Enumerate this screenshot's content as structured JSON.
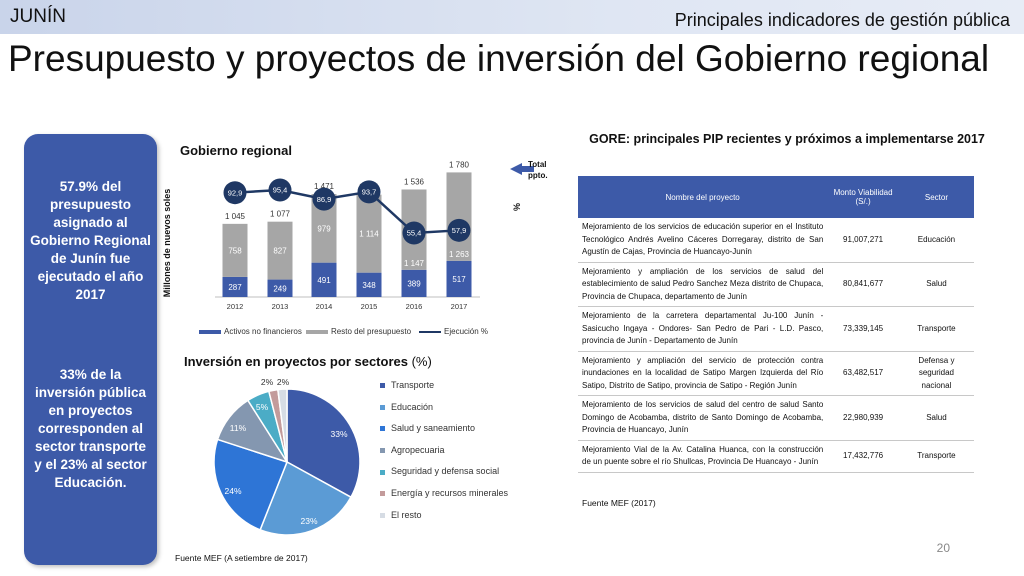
{
  "header": {
    "region": "JUNÍN",
    "subtitle": "Principales indicadores de gestión pública",
    "title": "Presupuesto y proyectos de inversión del Gobierno regional"
  },
  "side_panel": {
    "text1": "57.9% del presupuesto asignado al Gobierno Regional de Junín fue ejecutado el año 2017",
    "text2": "33% de la inversión pública en proyectos corresponden  al sector transporte y el 23% al sector Educación."
  },
  "colors": {
    "dark_blue": "#3d5aa8",
    "navy": "#1f3864",
    "gray_bar": "#a6a6a6",
    "light_blue": "#5b9bd5",
    "teal": "#4bacc6"
  },
  "bar_chart": {
    "total_label": "Total ppto.",
    "pct_label": "%"
  },
  "pie_chart": {
    "title_bold": "Inversión en proyectos por sectores",
    "title_unit": "(%)"
  },
  "chart_data": [
    {
      "type": "bar",
      "title": "Gobierno regional",
      "ylabel": "Millones de nuevos soles",
      "y2label": "%",
      "categories": [
        "2012",
        "2013",
        "2014",
        "2015",
        "2016",
        "2017"
      ],
      "series": [
        {
          "name": "Activos no financieros",
          "values": [
            287,
            249,
            491,
            348,
            389,
            517
          ]
        },
        {
          "name": "Resto del presupuesto",
          "values": [
            758,
            827,
            979,
            1114,
            1147,
            1263
          ]
        },
        {
          "name": "Ejecución %",
          "values": [
            92.9,
            95.4,
            86.9,
            93.7,
            55.4,
            57.9
          ]
        }
      ],
      "totals": [
        "1 045",
        "1 077",
        "1 471",
        "1 461",
        "1 536",
        "1 780"
      ],
      "value_labels_a": [
        "287",
        "249",
        "491",
        "348",
        "389",
        "517"
      ],
      "value_labels_b": [
        "758",
        "827",
        "979",
        "1 114",
        "1 147",
        "1 263"
      ],
      "exec_labels": [
        "92,9",
        "95,4",
        "86,9",
        "93,7",
        "55,4",
        "57,9"
      ],
      "ylim": [
        0,
        1800
      ],
      "legend_position": "bottom"
    },
    {
      "type": "pie",
      "title": "Inversión en proyectos por sectores (%)",
      "labels": [
        "Transporte",
        "Educación",
        "Salud y saneamiento",
        "Agropecuaria",
        "Seguridad y defensa social",
        "Energía y recursos minerales",
        "El resto"
      ],
      "values": [
        33,
        23,
        24,
        11,
        5,
        2,
        2
      ],
      "value_labels": [
        "33%",
        "23%",
        "24%",
        "11%",
        "5%",
        "2%",
        "2%"
      ],
      "colors": [
        "#3d5aa8",
        "#5b9bd5",
        "#2e75d6",
        "#8497b0",
        "#4bacc6",
        "#c39b9b",
        "#d6dce4"
      ],
      "legend_position": "right"
    }
  ],
  "sources": {
    "left": "Fuente MEF (A setiembre de 2017)",
    "right": "Fuente MEF (2017)"
  },
  "table": {
    "title": "GORE: principales PIP recientes y próximos a implementarse 2017",
    "headers": [
      "Nombre del proyecto",
      "Monto Viabilidad (S/.)",
      "Sector"
    ],
    "rows": [
      {
        "name": "Mejoramiento de los servicios de educación superior en el Instituto Tecnológico Andrés Avelino Cáceres Dorregaray, distrito de San Agustín de Cajas, Provincia de Huancayo-Junín",
        "amount": "91,007,271",
        "sector": "Educación"
      },
      {
        "name": "Mejoramiento y ampliación de los servicios de salud del establecimiento de salud Pedro Sanchez Meza distrito de Chupaca, Provincia de Chupaca, departamento de Junín",
        "amount": "80,841,677",
        "sector": "Salud"
      },
      {
        "name": "Mejoramiento de la carretera departamental Ju-100 Junín - Sasicucho Ingaya - Ondores- San Pedro de Pari - L.D. Pasco, provincia de Junín - Departamento de Junín",
        "amount": "73,339,145",
        "sector": "Transporte"
      },
      {
        "name": "Mejoramiento y ampliación del servicio de protección contra inundaciones en la localidad de Satipo Margen Izquierda del Río Satipo, Distrito de Satipo, provincia de Satipo - Región Junín",
        "amount": "63,482,517",
        "sector": "Defensa y seguridad nacional"
      },
      {
        "name": "Mejoramiento de los servicios de salud del centro de salud Santo Domingo de Acobamba, distrito de Santo Domingo de Acobamba, Provincia de Huancayo, Junín",
        "amount": "22,980,939",
        "sector": "Salud"
      },
      {
        "name": "Mejoramiento Vial de la Av. Catalina Huanca, con la construcción de un puente sobre el río Shullcas, Provincia De Huancayo - Junín",
        "amount": "17,432,776",
        "sector": "Transporte"
      }
    ]
  },
  "page_number": "20"
}
